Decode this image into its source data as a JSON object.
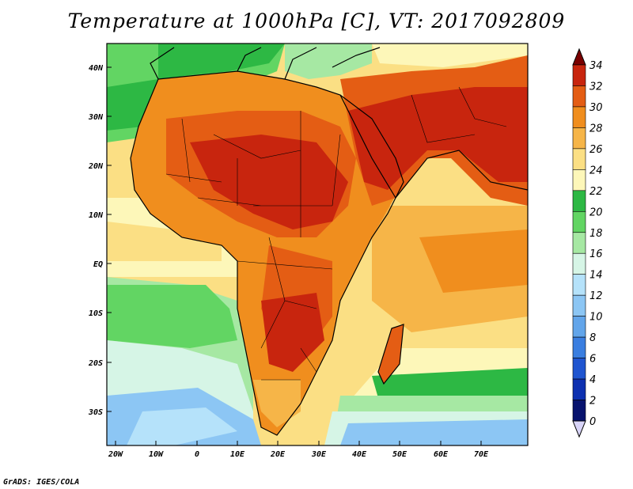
{
  "title": "Temperature at 1000hPa [C], VT: 2017092809",
  "credit": "GrADS: IGES/COLA",
  "map": {
    "lat_labels": [
      "40N",
      "30N",
      "20N",
      "10N",
      "EQ",
      "10S",
      "20S",
      "30S"
    ],
    "lon_labels": [
      "20W",
      "10W",
      "0",
      "10E",
      "20E",
      "30E",
      "40E",
      "50E",
      "60E",
      "70E"
    ]
  },
  "colorbar": {
    "levels": [
      "34",
      "32",
      "30",
      "28",
      "26",
      "24",
      "22",
      "20",
      "18",
      "16",
      "14",
      "12",
      "10",
      "8",
      "6",
      "4",
      "2",
      "0"
    ],
    "colors": [
      "#7a0000",
      "#c8250e",
      "#e45d14",
      "#f08e1e",
      "#f6b548",
      "#fbdf84",
      "#fdf7b9",
      "#2db844",
      "#62d563",
      "#a6e8a3",
      "#d6f5e6",
      "#b5e2fa",
      "#8cc6f4",
      "#62a5ea",
      "#3a7ee0",
      "#1f55d0",
      "#0d30b0",
      "#07136e",
      "#d8d4f8"
    ]
  }
}
